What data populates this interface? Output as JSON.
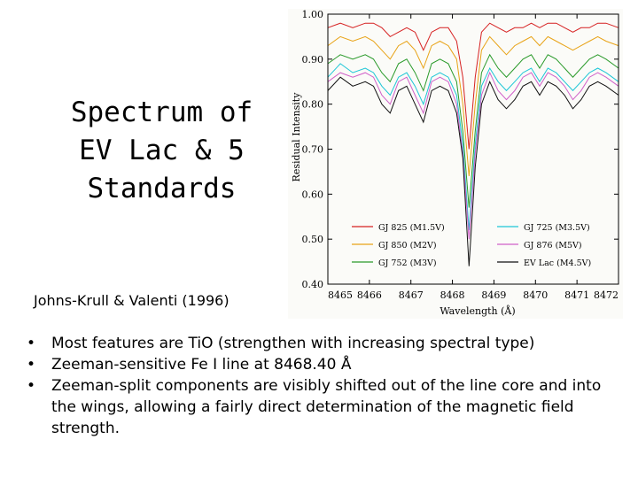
{
  "slide": {
    "title_lines": [
      "Spectrum of",
      "EV Lac & 5",
      "Standards"
    ],
    "citation": "Johns-Krull & Valenti (1996)",
    "bullets": [
      "Most features are TiO (strengthen with increasing spectral type)",
      "Zeeman-sensitive Fe I line at 8468.40 Å",
      "Zeeman-split components are visibly shifted out of the line core and into the wings, allowing a fairly direct determination of the magnetic field strength."
    ]
  },
  "chart_data": {
    "type": "line",
    "title": "",
    "xlabel": "Wavelength (Å)",
    "ylabel": "Residual Intensity",
    "xlim": [
      8465,
      8472
    ],
    "ylim": [
      0.4,
      1.0
    ],
    "xticks": [
      "8465",
      "8466",
      "8467",
      "8468",
      "8469",
      "8470",
      "8471",
      "8472"
    ],
    "yticks": [
      "1.00",
      "0.90",
      "0.80",
      "0.70",
      "0.60",
      "0.50",
      "0.40"
    ],
    "grid": false,
    "legend_position": "bottom",
    "x": [
      8465.0,
      8465.3,
      8465.6,
      8465.9,
      8466.1,
      8466.3,
      8466.5,
      8466.7,
      8466.9,
      8467.1,
      8467.3,
      8467.5,
      8467.7,
      8467.9,
      8468.1,
      8468.25,
      8468.4,
      8468.55,
      8468.7,
      8468.9,
      8469.1,
      8469.3,
      8469.5,
      8469.7,
      8469.9,
      8470.1,
      8470.3,
      8470.5,
      8470.7,
      8470.9,
      8471.1,
      8471.3,
      8471.5,
      8471.7,
      8472.0
    ],
    "series": [
      {
        "name": "GJ 825 (M1.5V)",
        "color": "#d62020",
        "values": [
          0.97,
          0.98,
          0.97,
          0.98,
          0.98,
          0.97,
          0.95,
          0.96,
          0.97,
          0.96,
          0.92,
          0.96,
          0.97,
          0.97,
          0.94,
          0.86,
          0.7,
          0.86,
          0.96,
          0.98,
          0.97,
          0.96,
          0.97,
          0.97,
          0.98,
          0.97,
          0.98,
          0.98,
          0.97,
          0.96,
          0.97,
          0.97,
          0.98,
          0.98,
          0.97
        ]
      },
      {
        "name": "GJ 850 (M2V)",
        "color": "#e8a317",
        "values": [
          0.93,
          0.95,
          0.94,
          0.95,
          0.94,
          0.92,
          0.9,
          0.93,
          0.94,
          0.92,
          0.88,
          0.93,
          0.94,
          0.93,
          0.9,
          0.8,
          0.64,
          0.8,
          0.92,
          0.95,
          0.93,
          0.91,
          0.93,
          0.94,
          0.95,
          0.93,
          0.95,
          0.94,
          0.93,
          0.92,
          0.93,
          0.94,
          0.95,
          0.94,
          0.93
        ]
      },
      {
        "name": "GJ 752 (M3V)",
        "color": "#2a9a2a",
        "values": [
          0.89,
          0.91,
          0.9,
          0.91,
          0.9,
          0.87,
          0.85,
          0.89,
          0.9,
          0.87,
          0.83,
          0.89,
          0.9,
          0.89,
          0.85,
          0.74,
          0.57,
          0.74,
          0.87,
          0.91,
          0.88,
          0.86,
          0.88,
          0.9,
          0.91,
          0.88,
          0.91,
          0.9,
          0.88,
          0.86,
          0.88,
          0.9,
          0.91,
          0.9,
          0.88
        ]
      },
      {
        "name": "GJ 725 (M3.5V)",
        "color": "#1cc6d6",
        "values": [
          0.86,
          0.89,
          0.87,
          0.88,
          0.87,
          0.84,
          0.82,
          0.86,
          0.87,
          0.84,
          0.8,
          0.86,
          0.87,
          0.86,
          0.82,
          0.71,
          0.52,
          0.71,
          0.84,
          0.88,
          0.85,
          0.83,
          0.85,
          0.87,
          0.88,
          0.85,
          0.88,
          0.87,
          0.85,
          0.83,
          0.85,
          0.87,
          0.88,
          0.87,
          0.85
        ]
      },
      {
        "name": "GJ 876 (M5V)",
        "color": "#d060c8",
        "values": [
          0.85,
          0.87,
          0.86,
          0.87,
          0.86,
          0.82,
          0.8,
          0.85,
          0.86,
          0.82,
          0.78,
          0.85,
          0.86,
          0.85,
          0.8,
          0.69,
          0.5,
          0.69,
          0.82,
          0.87,
          0.83,
          0.81,
          0.83,
          0.86,
          0.87,
          0.84,
          0.87,
          0.86,
          0.84,
          0.81,
          0.83,
          0.86,
          0.87,
          0.86,
          0.84
        ]
      },
      {
        "name": "EV Lac (M4.5V)",
        "color": "#111111",
        "values": [
          0.83,
          0.86,
          0.84,
          0.85,
          0.84,
          0.8,
          0.78,
          0.83,
          0.84,
          0.8,
          0.76,
          0.83,
          0.84,
          0.83,
          0.78,
          0.68,
          0.44,
          0.66,
          0.8,
          0.85,
          0.81,
          0.79,
          0.81,
          0.84,
          0.85,
          0.82,
          0.85,
          0.84,
          0.82,
          0.79,
          0.81,
          0.84,
          0.85,
          0.84,
          0.82
        ]
      }
    ]
  }
}
